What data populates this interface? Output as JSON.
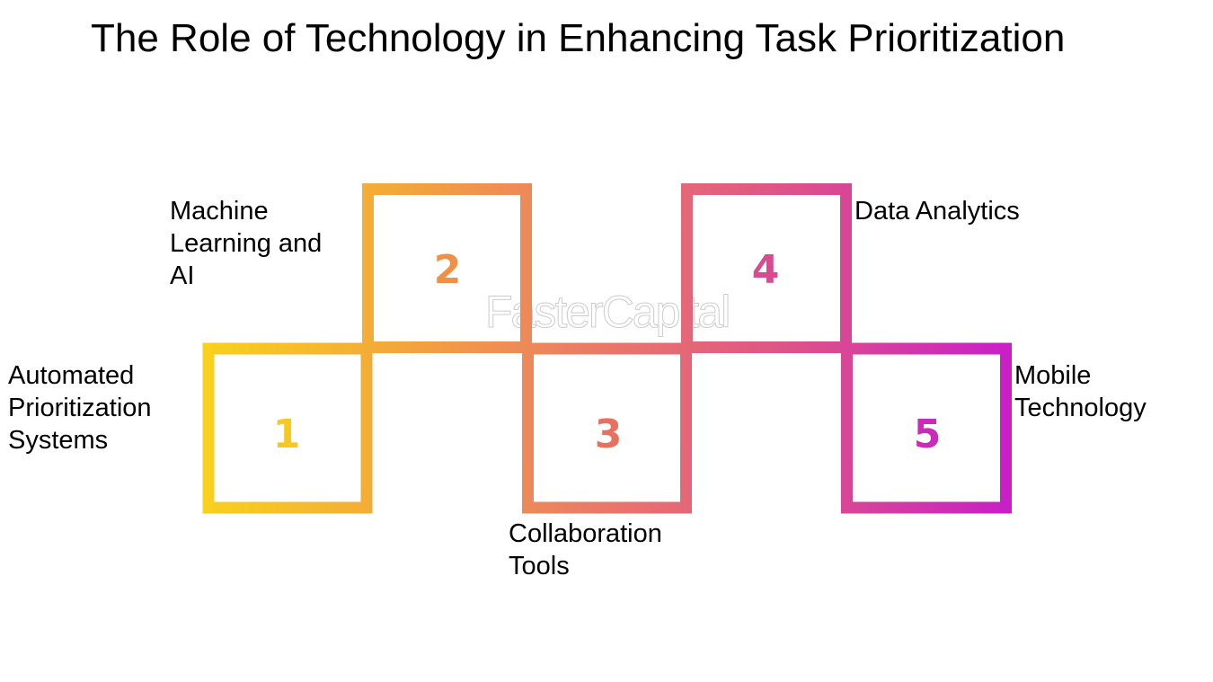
{
  "title": "The Role of Technology in Enhancing Task Prioritization",
  "watermark": "FasterCapital",
  "gradient_colors": [
    "#f9d11c",
    "#f2a53c",
    "#e9776a",
    "#db4f8c",
    "#c81ec8"
  ],
  "steps": [
    {
      "number": "1",
      "label": "Automated\nPrioritization\nSystems",
      "color": "#f5c822"
    },
    {
      "number": "2",
      "label": "Machine\nLearning and\nAI",
      "color": "#ee9046"
    },
    {
      "number": "3",
      "label": "Collaboration\nTools",
      "color": "#e8705e"
    },
    {
      "number": "4",
      "label": "Data Analytics",
      "color": "#d94a90"
    },
    {
      "number": "5",
      "label": "Mobile\nTechnology",
      "color": "#cc2ab8"
    }
  ]
}
